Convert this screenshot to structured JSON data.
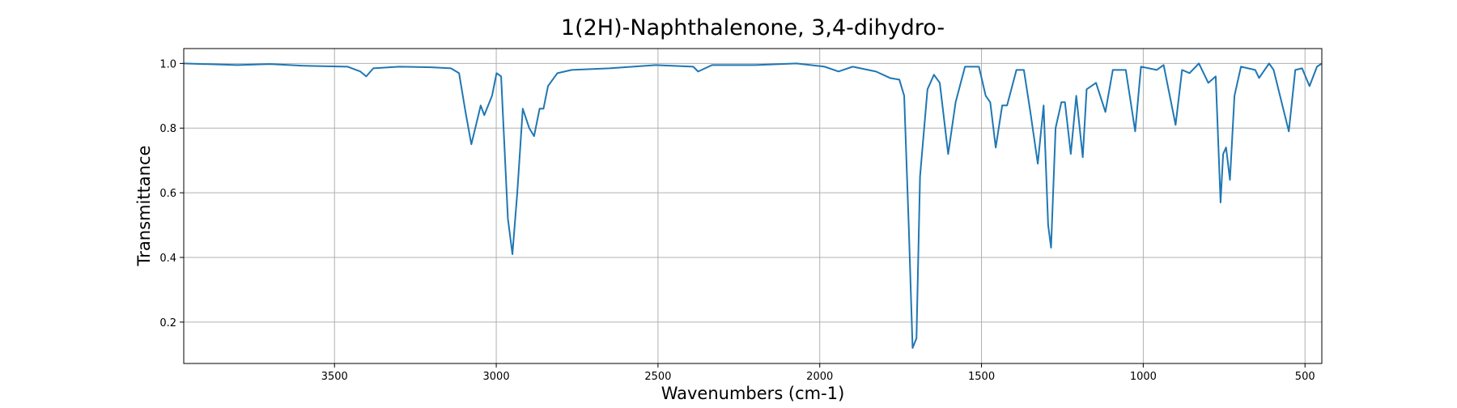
{
  "chart_data": {
    "type": "line",
    "title": "1(2H)-Naphthalenone, 3,4-dihydro-",
    "x_label": "Wavenumbers (cm-1)",
    "y_label": "Transmittance",
    "color": "#1f77b4",
    "grid": true,
    "x_inverted": true,
    "xlim": [
      3966,
      448
    ],
    "ylim": [
      0.072,
      1.046
    ],
    "xticks": [
      3500,
      3000,
      2500,
      2000,
      1500,
      1000,
      500
    ],
    "yticks": [
      0.2,
      0.4,
      0.6,
      0.8,
      {
        "value": 1,
        "label": "1.0"
      }
    ],
    "x": [
      3966,
      3800,
      3700,
      3600,
      3460,
      3420,
      3402,
      3380,
      3300,
      3200,
      3140,
      3115,
      3095,
      3077,
      3060,
      3048,
      3037,
      3013,
      2999,
      2985,
      2964,
      2950,
      2935,
      2918,
      2898,
      2883,
      2866,
      2854,
      2840,
      2811,
      2767,
      2650,
      2507,
      2391,
      2376,
      2333,
      2200,
      2072,
      1985,
      1942,
      1898,
      1826,
      1783,
      1754,
      1739,
      1725,
      1713,
      1701,
      1690,
      1667,
      1647,
      1629,
      1603,
      1580,
      1551,
      1508,
      1487,
      1473,
      1456,
      1436,
      1421,
      1392,
      1369,
      1349,
      1326,
      1308,
      1294,
      1285,
      1271,
      1253,
      1242,
      1224,
      1207,
      1187,
      1175,
      1146,
      1117,
      1094,
      1054,
      1025,
      1007,
      958,
      937,
      900,
      880,
      857,
      828,
      799,
      776,
      761,
      753,
      744,
      732,
      718,
      698,
      654,
      642,
      611,
      597,
      550,
      530,
      509,
      486,
      463,
      448
    ],
    "values": [
      1.0,
      0.995,
      0.998,
      0.993,
      0.99,
      0.975,
      0.96,
      0.985,
      0.99,
      0.988,
      0.985,
      0.97,
      0.85,
      0.75,
      0.82,
      0.87,
      0.84,
      0.9,
      0.97,
      0.96,
      0.52,
      0.41,
      0.6,
      0.86,
      0.8,
      0.775,
      0.86,
      0.86,
      0.93,
      0.97,
      0.98,
      0.985,
      0.995,
      0.99,
      0.975,
      0.995,
      0.995,
      1.0,
      0.99,
      0.975,
      0.99,
      0.975,
      0.955,
      0.95,
      0.9,
      0.5,
      0.12,
      0.15,
      0.65,
      0.92,
      0.965,
      0.94,
      0.72,
      0.88,
      0.99,
      0.99,
      0.9,
      0.88,
      0.74,
      0.87,
      0.87,
      0.98,
      0.98,
      0.85,
      0.69,
      0.87,
      0.5,
      0.43,
      0.8,
      0.88,
      0.88,
      0.72,
      0.9,
      0.71,
      0.92,
      0.94,
      0.85,
      0.98,
      0.98,
      0.79,
      0.99,
      0.98,
      0.995,
      0.81,
      0.98,
      0.97,
      1.0,
      0.94,
      0.96,
      0.57,
      0.72,
      0.74,
      0.64,
      0.9,
      0.99,
      0.98,
      0.955,
      1.0,
      0.98,
      0.79,
      0.98,
      0.985,
      0.93,
      0.99,
      1.0
    ]
  }
}
